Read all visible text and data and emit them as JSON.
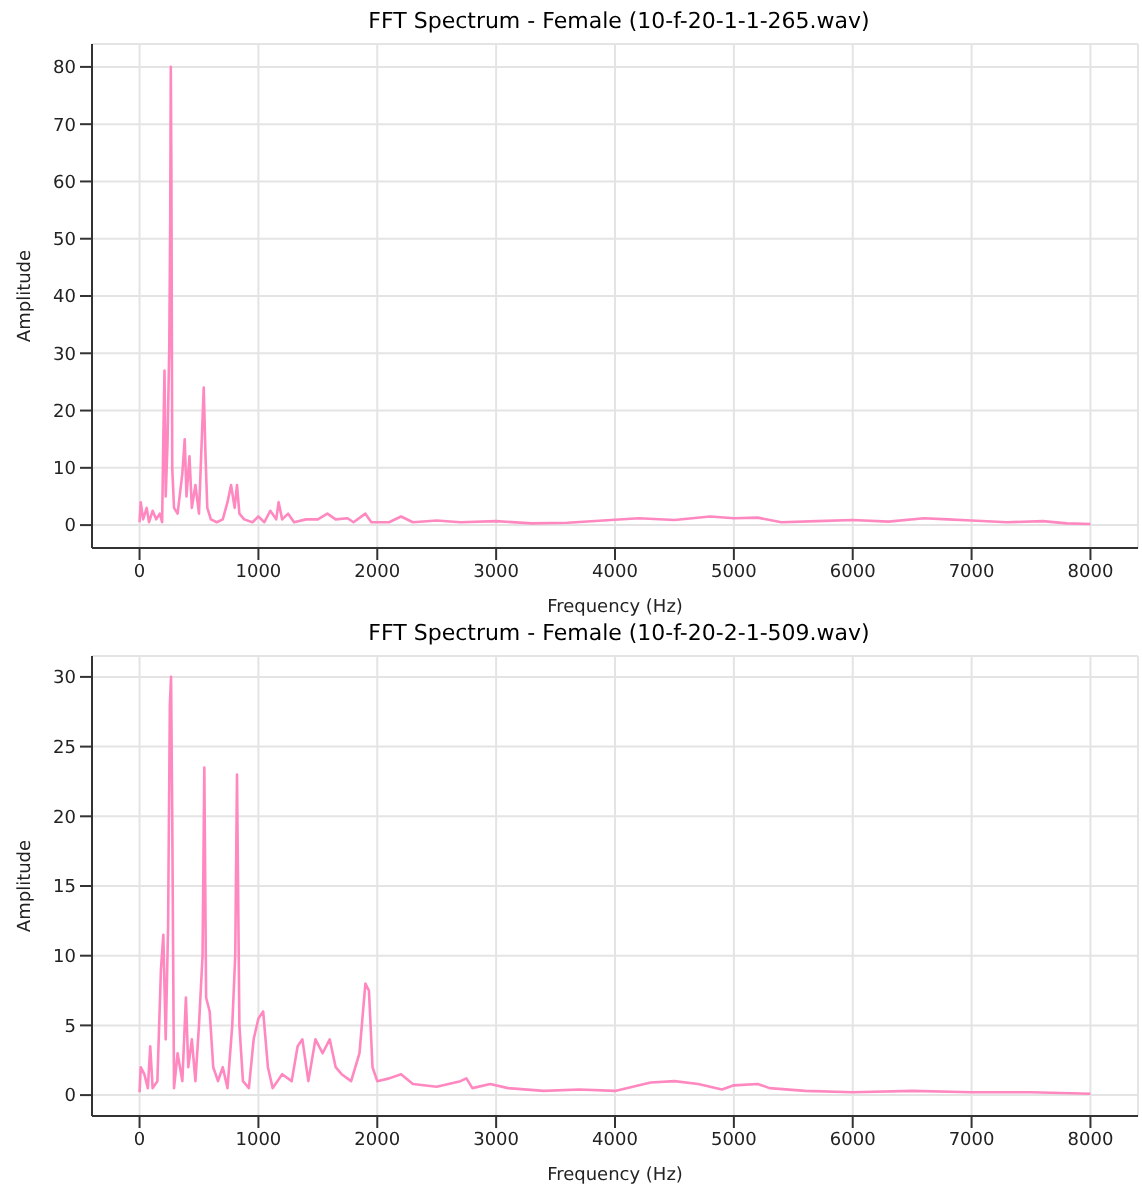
{
  "chart_data": [
    {
      "type": "line",
      "title": "FFT Spectrum - Female (10-f-20-1-1-265.wav)",
      "xlabel": "Frequency (Hz)",
      "ylabel": "Amplitude",
      "grid": true,
      "marker": "none",
      "line_style": "solid",
      "xlim": [
        -400,
        8400
      ],
      "xticks": [
        0,
        1000,
        2000,
        3000,
        4000,
        5000,
        6000,
        7000,
        8000
      ],
      "ylim": [
        -4,
        84
      ],
      "yticks": [
        0,
        10,
        20,
        30,
        40,
        50,
        60,
        70,
        80
      ],
      "x": [
        0,
        10,
        30,
        60,
        80,
        110,
        140,
        170,
        190,
        200,
        210,
        220,
        235,
        250,
        258,
        263,
        268,
        275,
        290,
        320,
        360,
        380,
        395,
        420,
        440,
        470,
        500,
        520,
        540,
        555,
        570,
        600,
        650,
        700,
        740,
        770,
        800,
        820,
        840,
        880,
        950,
        1000,
        1050,
        1100,
        1150,
        1170,
        1200,
        1250,
        1300,
        1400,
        1500,
        1580,
        1650,
        1750,
        1800,
        1900,
        1950,
        2100,
        2200,
        2300,
        2500,
        2700,
        3000,
        3300,
        3600,
        3900,
        4200,
        4500,
        4800,
        5000,
        5200,
        5400,
        5700,
        6000,
        6300,
        6600,
        6800,
        7000,
        7300,
        7600,
        7800,
        8000
      ],
      "series": [
        {
          "color": "#ff88c0",
          "values": [
            0.5,
            4,
            1,
            3,
            0.5,
            2.5,
            1,
            2,
            0.5,
            15,
            27,
            5,
            14,
            31,
            53,
            80,
            61,
            10,
            3,
            2,
            9,
            15,
            5,
            12,
            3,
            7,
            2,
            13,
            24,
            12,
            3,
            1,
            0.5,
            1,
            4,
            7,
            3,
            7,
            2,
            1,
            0.5,
            1.5,
            0.5,
            2.5,
            1,
            4,
            1,
            2,
            0.5,
            1,
            1,
            2,
            1,
            1.2,
            0.5,
            2,
            0.5,
            0.5,
            1.5,
            0.5,
            0.8,
            0.5,
            0.7,
            0.3,
            0.4,
            0.8,
            1.2,
            0.9,
            1.5,
            1.2,
            1.3,
            0.5,
            0.7,
            0.9,
            0.6,
            1.2,
            1,
            0.8,
            0.5,
            0.7,
            0.3,
            0.2
          ]
        }
      ]
    },
    {
      "type": "line",
      "title": "FFT Spectrum - Female (10-f-20-2-1-509.wav)",
      "xlabel": "Frequency (Hz)",
      "ylabel": "Amplitude",
      "grid": true,
      "marker": "none",
      "line_style": "solid",
      "xlim": [
        -400,
        8400
      ],
      "xticks": [
        0,
        1000,
        2000,
        3000,
        4000,
        5000,
        6000,
        7000,
        8000
      ],
      "ylim": [
        -1.5,
        31.5
      ],
      "yticks": [
        0,
        5,
        10,
        15,
        20,
        25,
        30
      ],
      "x": [
        0,
        10,
        40,
        70,
        90,
        110,
        150,
        180,
        200,
        220,
        240,
        255,
        265,
        275,
        290,
        320,
        360,
        390,
        410,
        440,
        470,
        500,
        530,
        545,
        560,
        590,
        620,
        660,
        700,
        740,
        780,
        805,
        820,
        840,
        870,
        920,
        960,
        1000,
        1040,
        1080,
        1120,
        1200,
        1280,
        1330,
        1370,
        1420,
        1480,
        1540,
        1600,
        1650,
        1700,
        1780,
        1850,
        1900,
        1930,
        1960,
        2000,
        2100,
        2200,
        2300,
        2500,
        2700,
        2750,
        2800,
        2950,
        3100,
        3400,
        3700,
        4000,
        4300,
        4500,
        4700,
        4900,
        5000,
        5200,
        5300,
        5600,
        6000,
        6500,
        7000,
        7500,
        8000
      ],
      "series": [
        {
          "color": "#ff88c0",
          "values": [
            0.2,
            2,
            1.5,
            0.5,
            3.5,
            0.5,
            1,
            9,
            11.5,
            4,
            12,
            28,
            30,
            20,
            0.5,
            3,
            1,
            7,
            2,
            4,
            1,
            5,
            10,
            23.5,
            7,
            6,
            2,
            1,
            2,
            0.5,
            5,
            10,
            23,
            5,
            1,
            0.5,
            4,
            5.5,
            6,
            2,
            0.5,
            1.5,
            1,
            3.5,
            4,
            1,
            4,
            3,
            4,
            2,
            1.5,
            1,
            3,
            8,
            7.5,
            2,
            1,
            1.2,
            1.5,
            0.8,
            0.6,
            1,
            1.2,
            0.5,
            0.8,
            0.5,
            0.3,
            0.4,
            0.3,
            0.9,
            1,
            0.8,
            0.4,
            0.7,
            0.8,
            0.5,
            0.3,
            0.2,
            0.3,
            0.2,
            0.2,
            0.1
          ]
        }
      ]
    }
  ]
}
